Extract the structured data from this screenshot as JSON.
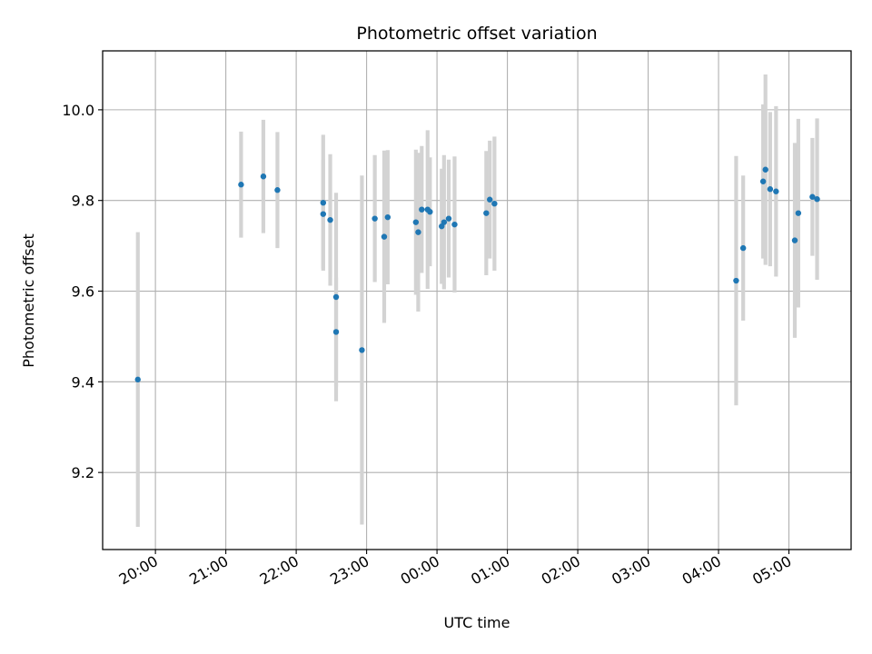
{
  "chart_data": {
    "type": "scatter",
    "title": "Photometric offset variation",
    "xlabel": "UTC time",
    "ylabel": "Photometric offset",
    "x_unit": "UTC time (HH:MM)",
    "xlim": [
      "19:15",
      "05:53"
    ],
    "ylim": [
      9.03,
      10.13
    ],
    "grid": true,
    "point_color": "#1f77b4",
    "errorbar_color": "#d3d3d3",
    "x_ticks": [
      "20:00",
      "21:00",
      "22:00",
      "23:00",
      "00:00",
      "01:00",
      "02:00",
      "03:00",
      "04:00",
      "05:00"
    ],
    "y_ticks": [
      "9.2",
      "9.4",
      "9.6",
      "9.8",
      "10.0"
    ],
    "points": [
      {
        "x": "19:45",
        "y": 9.405,
        "err": 0.325
      },
      {
        "x": "21:13",
        "y": 9.835,
        "err": 0.117
      },
      {
        "x": "21:32",
        "y": 9.853,
        "err": 0.125
      },
      {
        "x": "21:44",
        "y": 9.823,
        "err": 0.128
      },
      {
        "x": "22:23",
        "y": 9.795,
        "err": 0.15
      },
      {
        "x": "22:23",
        "y": 9.77,
        "err": 0.12
      },
      {
        "x": "22:29",
        "y": 9.757,
        "err": 0.145
      },
      {
        "x": "22:34",
        "y": 9.587,
        "err": 0.23
      },
      {
        "x": "22:34",
        "y": 9.51,
        "err": 0.12
      },
      {
        "x": "22:56",
        "y": 9.47,
        "err": 0.385
      },
      {
        "x": "23:07",
        "y": 9.76,
        "err": 0.14
      },
      {
        "x": "23:15",
        "y": 9.72,
        "err": 0.19
      },
      {
        "x": "23:18",
        "y": 9.763,
        "err": 0.148
      },
      {
        "x": "23:42",
        "y": 9.752,
        "err": 0.16
      },
      {
        "x": "23:44",
        "y": 9.73,
        "err": 0.175
      },
      {
        "x": "23:47",
        "y": 9.78,
        "err": 0.14
      },
      {
        "x": "23:52",
        "y": 9.78,
        "err": 0.175
      },
      {
        "x": "23:54",
        "y": 9.775,
        "err": 0.12
      },
      {
        "x": "00:04",
        "y": 9.743,
        "err": 0.127
      },
      {
        "x": "00:06",
        "y": 9.752,
        "err": 0.148
      },
      {
        "x": "00:10",
        "y": 9.76,
        "err": 0.13
      },
      {
        "x": "00:15",
        "y": 9.747,
        "err": 0.15
      },
      {
        "x": "00:42",
        "y": 9.772,
        "err": 0.137
      },
      {
        "x": "00:45",
        "y": 9.802,
        "err": 0.13
      },
      {
        "x": "00:49",
        "y": 9.793,
        "err": 0.148
      },
      {
        "x": "04:15",
        "y": 9.623,
        "err": 0.275
      },
      {
        "x": "04:21",
        "y": 9.695,
        "err": 0.16
      },
      {
        "x": "04:38",
        "y": 9.842,
        "err": 0.17
      },
      {
        "x": "04:40",
        "y": 9.868,
        "err": 0.21
      },
      {
        "x": "04:44",
        "y": 9.825,
        "err": 0.17
      },
      {
        "x": "04:49",
        "y": 9.82,
        "err": 0.188
      },
      {
        "x": "05:05",
        "y": 9.712,
        "err": 0.215
      },
      {
        "x": "05:08",
        "y": 9.772,
        "err": 0.208
      },
      {
        "x": "05:20",
        "y": 9.808,
        "err": 0.13
      },
      {
        "x": "05:24",
        "y": 9.803,
        "err": 0.178
      }
    ]
  }
}
